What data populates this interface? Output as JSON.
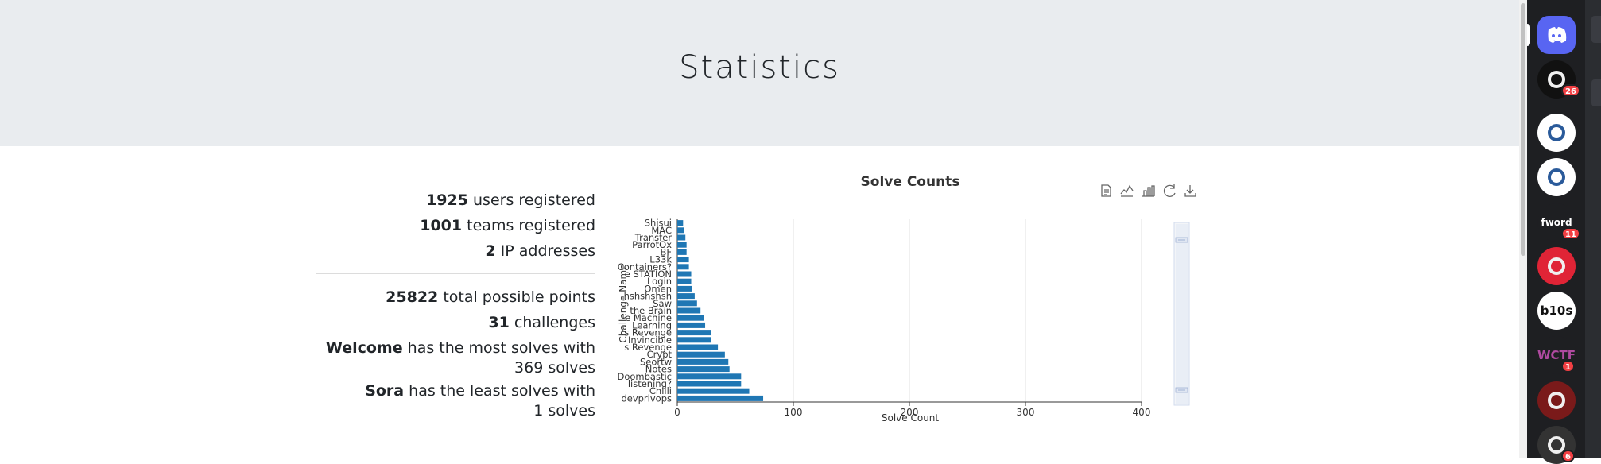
{
  "page": {
    "title": "Statistics"
  },
  "stats": {
    "users_count": "1925",
    "users_text": " users registered",
    "teams_count": "1001",
    "teams_text": " teams registered",
    "ip_count": "2",
    "ip_text": " IP addresses",
    "points_count": "25822",
    "points_text": " total possible points",
    "challenges_count": "31",
    "challenges_text": " challenges",
    "most_name": "Welcome",
    "most_text_a": " has the most solves with",
    "most_text_b": "369 solves",
    "least_name": "Sora",
    "least_text_a": " has the least solves with",
    "least_text_b": "1 solves"
  },
  "toolbar": {
    "icons": [
      "data-view-icon",
      "line-chart-icon",
      "bar-chart-icon",
      "restore-icon",
      "save-image-icon"
    ]
  },
  "chart_data": {
    "type": "bar",
    "orientation": "horizontal",
    "title": "Solve Counts",
    "xlabel": "Solve Count",
    "ylabel": "Challenge Name",
    "xlim": [
      0,
      400
    ],
    "xticks": [
      0,
      100,
      200,
      300,
      400
    ],
    "grid": true,
    "categories": [
      "devprivops",
      "Chilli",
      "listening?",
      "Doombastic",
      "Notes",
      "Seortw",
      "Crypt",
      "s Revenge",
      "Invincible",
      "'s Revenge",
      "Learning",
      "e Machine",
      "the Brain",
      "Saw",
      "hshshshsh",
      "Omen",
      "Login",
      "e STATION",
      "Containers?",
      "L33k",
      "BF",
      "ParrotOx",
      "Transfer",
      "MAC",
      "Shisui"
    ],
    "values": [
      74,
      62,
      55,
      55,
      45,
      44,
      41,
      35,
      29,
      29,
      24,
      23,
      20,
      17,
      15,
      13,
      12,
      12,
      10,
      10,
      8,
      8,
      7,
      6,
      5
    ],
    "bar_color": "#1f77b4"
  },
  "taskbar": {
    "servers": [
      {
        "name": "discord-home-icon",
        "label": "",
        "color": "#5865f2",
        "top": 20
      },
      {
        "name": "server-ring-icon",
        "label": "",
        "color": "#111111",
        "badge": "26",
        "top": 76
      },
      {
        "name": "server-shield-icon",
        "label": "",
        "color": "#ffffff",
        "top": 143
      },
      {
        "name": "server-bird-icon",
        "label": "",
        "color": "#ffffff",
        "top": 199
      },
      {
        "name": "server-fword-icon",
        "label": "fword",
        "color": "#1e1f22",
        "badge": "11",
        "top": 256
      },
      {
        "name": "server-red-crest-icon",
        "label": "",
        "color": "#e02436",
        "top": 311
      },
      {
        "name": "server-b10s-icon",
        "label": "b10s",
        "color": "#ffffff",
        "top": 367
      },
      {
        "name": "server-wctf-icon",
        "label": "WCTF",
        "color": "#1e1f22",
        "badge": "1",
        "top": 423
      },
      {
        "name": "server-dark-red-icon",
        "label": "",
        "color": "#7a1a1a",
        "top": 480
      },
      {
        "name": "server-c-icon",
        "label": "",
        "color": "#333333",
        "badge": "6",
        "top": 536
      }
    ]
  }
}
